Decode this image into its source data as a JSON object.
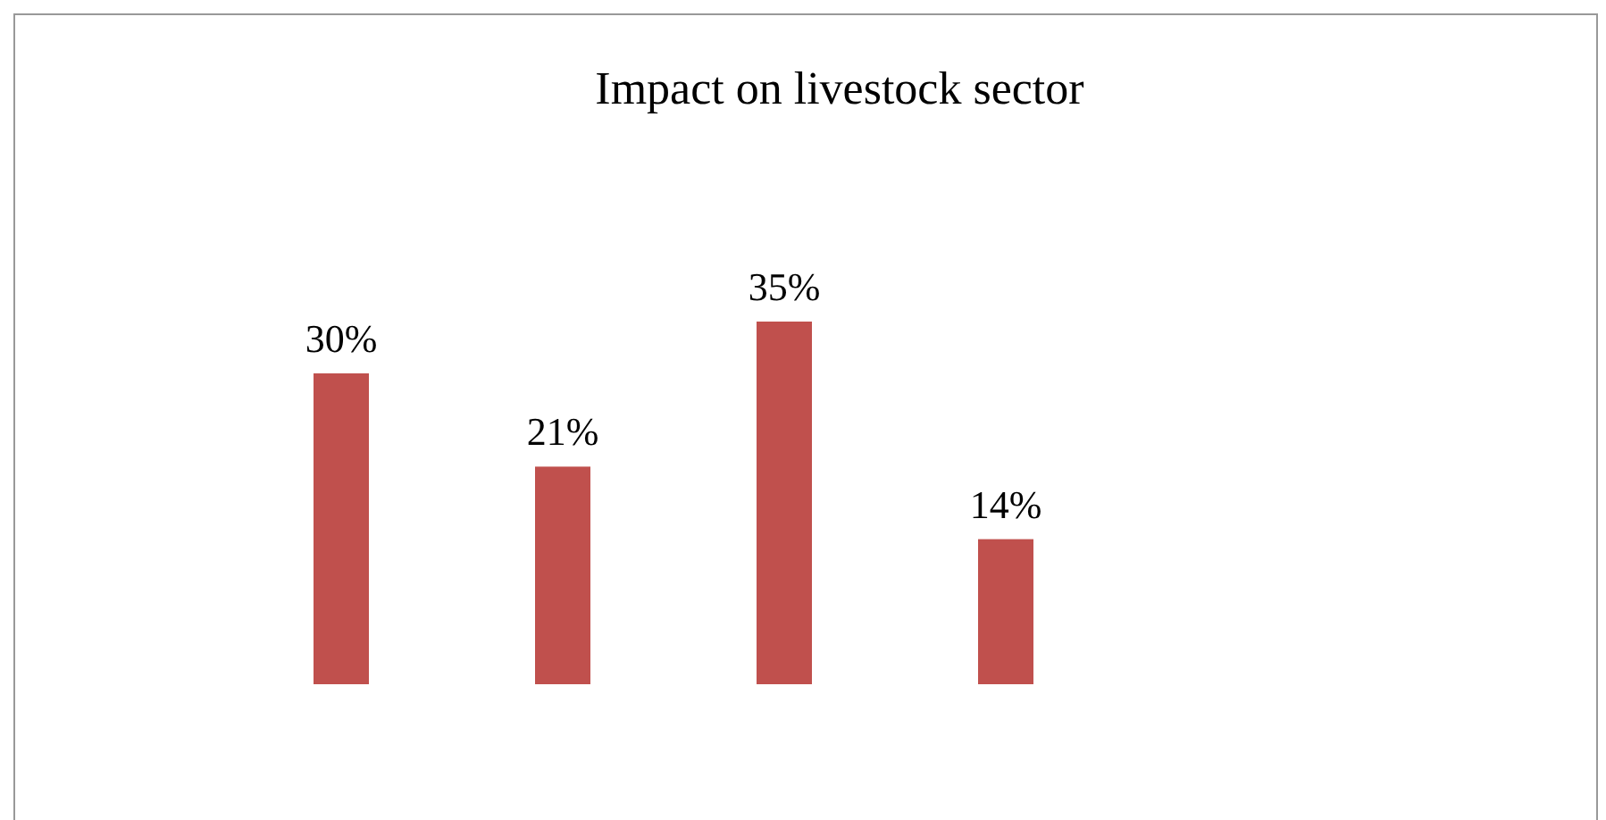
{
  "chart_data": {
    "type": "bar",
    "title": "Impact on livestock sector",
    "categories": [
      null,
      null,
      null,
      null
    ],
    "values": [
      30,
      21,
      35,
      14
    ],
    "value_labels": [
      "30%",
      "21%",
      "35%",
      "14%"
    ],
    "color": "#c0504d"
  }
}
